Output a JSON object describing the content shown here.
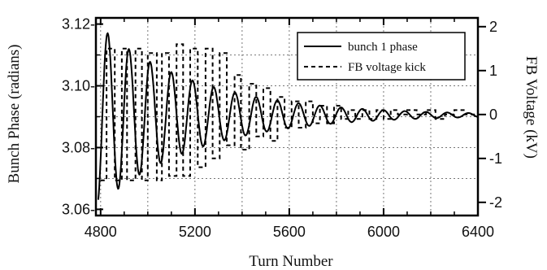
{
  "chart_data": {
    "type": "line",
    "title": "",
    "xlabel": "Turn Number",
    "ylabel": "Bunch Phase (radians)",
    "y2label": "FB Voltage (kV)",
    "xlim": [
      4780,
      6400
    ],
    "ylim": [
      3.058,
      3.122
    ],
    "y2lim": [
      -2.3,
      2.2
    ],
    "x_ticks": [
      4800,
      5200,
      5600,
      6000,
      6400
    ],
    "x_tick_labels": [
      "4800",
      "5200",
      "5600",
      "6000",
      "6400"
    ],
    "y_ticks": [
      3.06,
      3.08,
      3.1,
      3.12
    ],
    "y_tick_labels": [
      "3.06-",
      "3.08-",
      "3.10-",
      "3.12-"
    ],
    "y2_ticks": [
      -2,
      -1,
      0,
      1,
      2
    ],
    "y2_tick_labels": [
      "-2",
      "-1",
      "0",
      "1",
      "2"
    ],
    "grid": true,
    "legend_position": "top-right",
    "series": [
      {
        "name": "bunch 1 phase",
        "axis": "left",
        "style": "solid",
        "model": {
          "x_start": 4790,
          "x_end": 6400,
          "center": 3.0905,
          "amplitude": 0.0265,
          "period": 90,
          "phase_x": 4830,
          "decay": 420
        },
        "x": [
          4800,
          4830,
          4875,
          4920,
          4965,
          5010,
          5055,
          5100,
          5145,
          5190,
          5235,
          5280,
          5325,
          5370,
          5415,
          5460,
          5505,
          5550,
          5595,
          5640,
          5685,
          5730,
          5775,
          5820,
          5865,
          5910,
          5955,
          6000,
          6400
        ],
        "values": [
          3.081,
          3.117,
          3.068,
          3.113,
          3.071,
          3.111,
          3.073,
          3.109,
          3.075,
          3.107,
          3.078,
          3.104,
          3.081,
          3.101,
          3.083,
          3.099,
          3.085,
          3.096,
          3.086,
          3.095,
          3.087,
          3.094,
          3.088,
          3.093,
          3.089,
          3.092,
          3.089,
          3.092,
          3.091
        ]
      },
      {
        "name": "FB voltage kick",
        "axis": "right",
        "style": "dashed",
        "x": [
          4800,
          4825,
          4860,
          4890,
          4912,
          4948,
          4975,
          5000,
          5038,
          5060,
          5090,
          5122,
          5150,
          5180,
          5212,
          5245,
          5275,
          5305,
          5335,
          5368,
          5395,
          5430,
          5460,
          5490,
          5520,
          5550,
          5580,
          5610,
          5640,
          5670,
          5700,
          5730,
          5760,
          5790,
          5820,
          5850,
          5880,
          5910,
          5940,
          5970,
          6000,
          6030,
          6060,
          6100,
          6140,
          6180,
          6220,
          6260,
          6300,
          6340,
          6400
        ],
        "values": [
          -1.5,
          1.5,
          -1.5,
          1.5,
          -1.5,
          1.5,
          -1.5,
          1.4,
          -1.5,
          1.4,
          -1.4,
          1.6,
          -1.4,
          1.5,
          -1.2,
          1.5,
          -1.0,
          1.4,
          -0.7,
          0.9,
          -0.8,
          0.7,
          -0.5,
          0.6,
          -0.6,
          0.4,
          -0.3,
          0.3,
          -0.3,
          0.3,
          -0.2,
          0.2,
          -0.2,
          0.2,
          -0.1,
          0.1,
          -0.1,
          0.1,
          -0.1,
          0.1,
          -0.1,
          0.1,
          0.0,
          0.1,
          0.0,
          0.1,
          -0.1,
          0.0,
          0.1,
          0.0,
          0.0
        ]
      }
    ]
  }
}
